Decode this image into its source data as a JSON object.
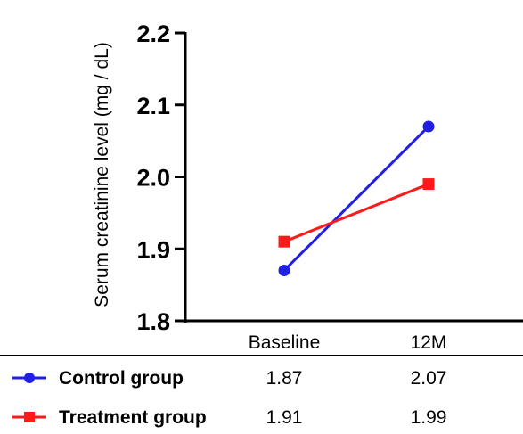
{
  "chart_data": {
    "type": "line",
    "categories": [
      "Baseline",
      "12M"
    ],
    "series": [
      {
        "name": "Control group",
        "values": [
          1.87,
          2.07
        ],
        "value_labels": [
          "1.87",
          "2.07"
        ],
        "color": "#1f1fe6",
        "marker": "circle"
      },
      {
        "name": "Treatment group",
        "values": [
          1.91,
          1.99
        ],
        "value_labels": [
          "1.91",
          "1.99"
        ],
        "color": "#ff1a1a",
        "marker": "square"
      }
    ],
    "title": "",
    "xlabel": "",
    "ylabel": "Serum creatinine level (mg / dL)",
    "ylim": [
      1.8,
      2.2
    ],
    "yticks": [
      "1.8",
      "1.9",
      "2.0",
      "2.1",
      "2.2"
    ],
    "grid": false,
    "legend": "bottom table"
  }
}
